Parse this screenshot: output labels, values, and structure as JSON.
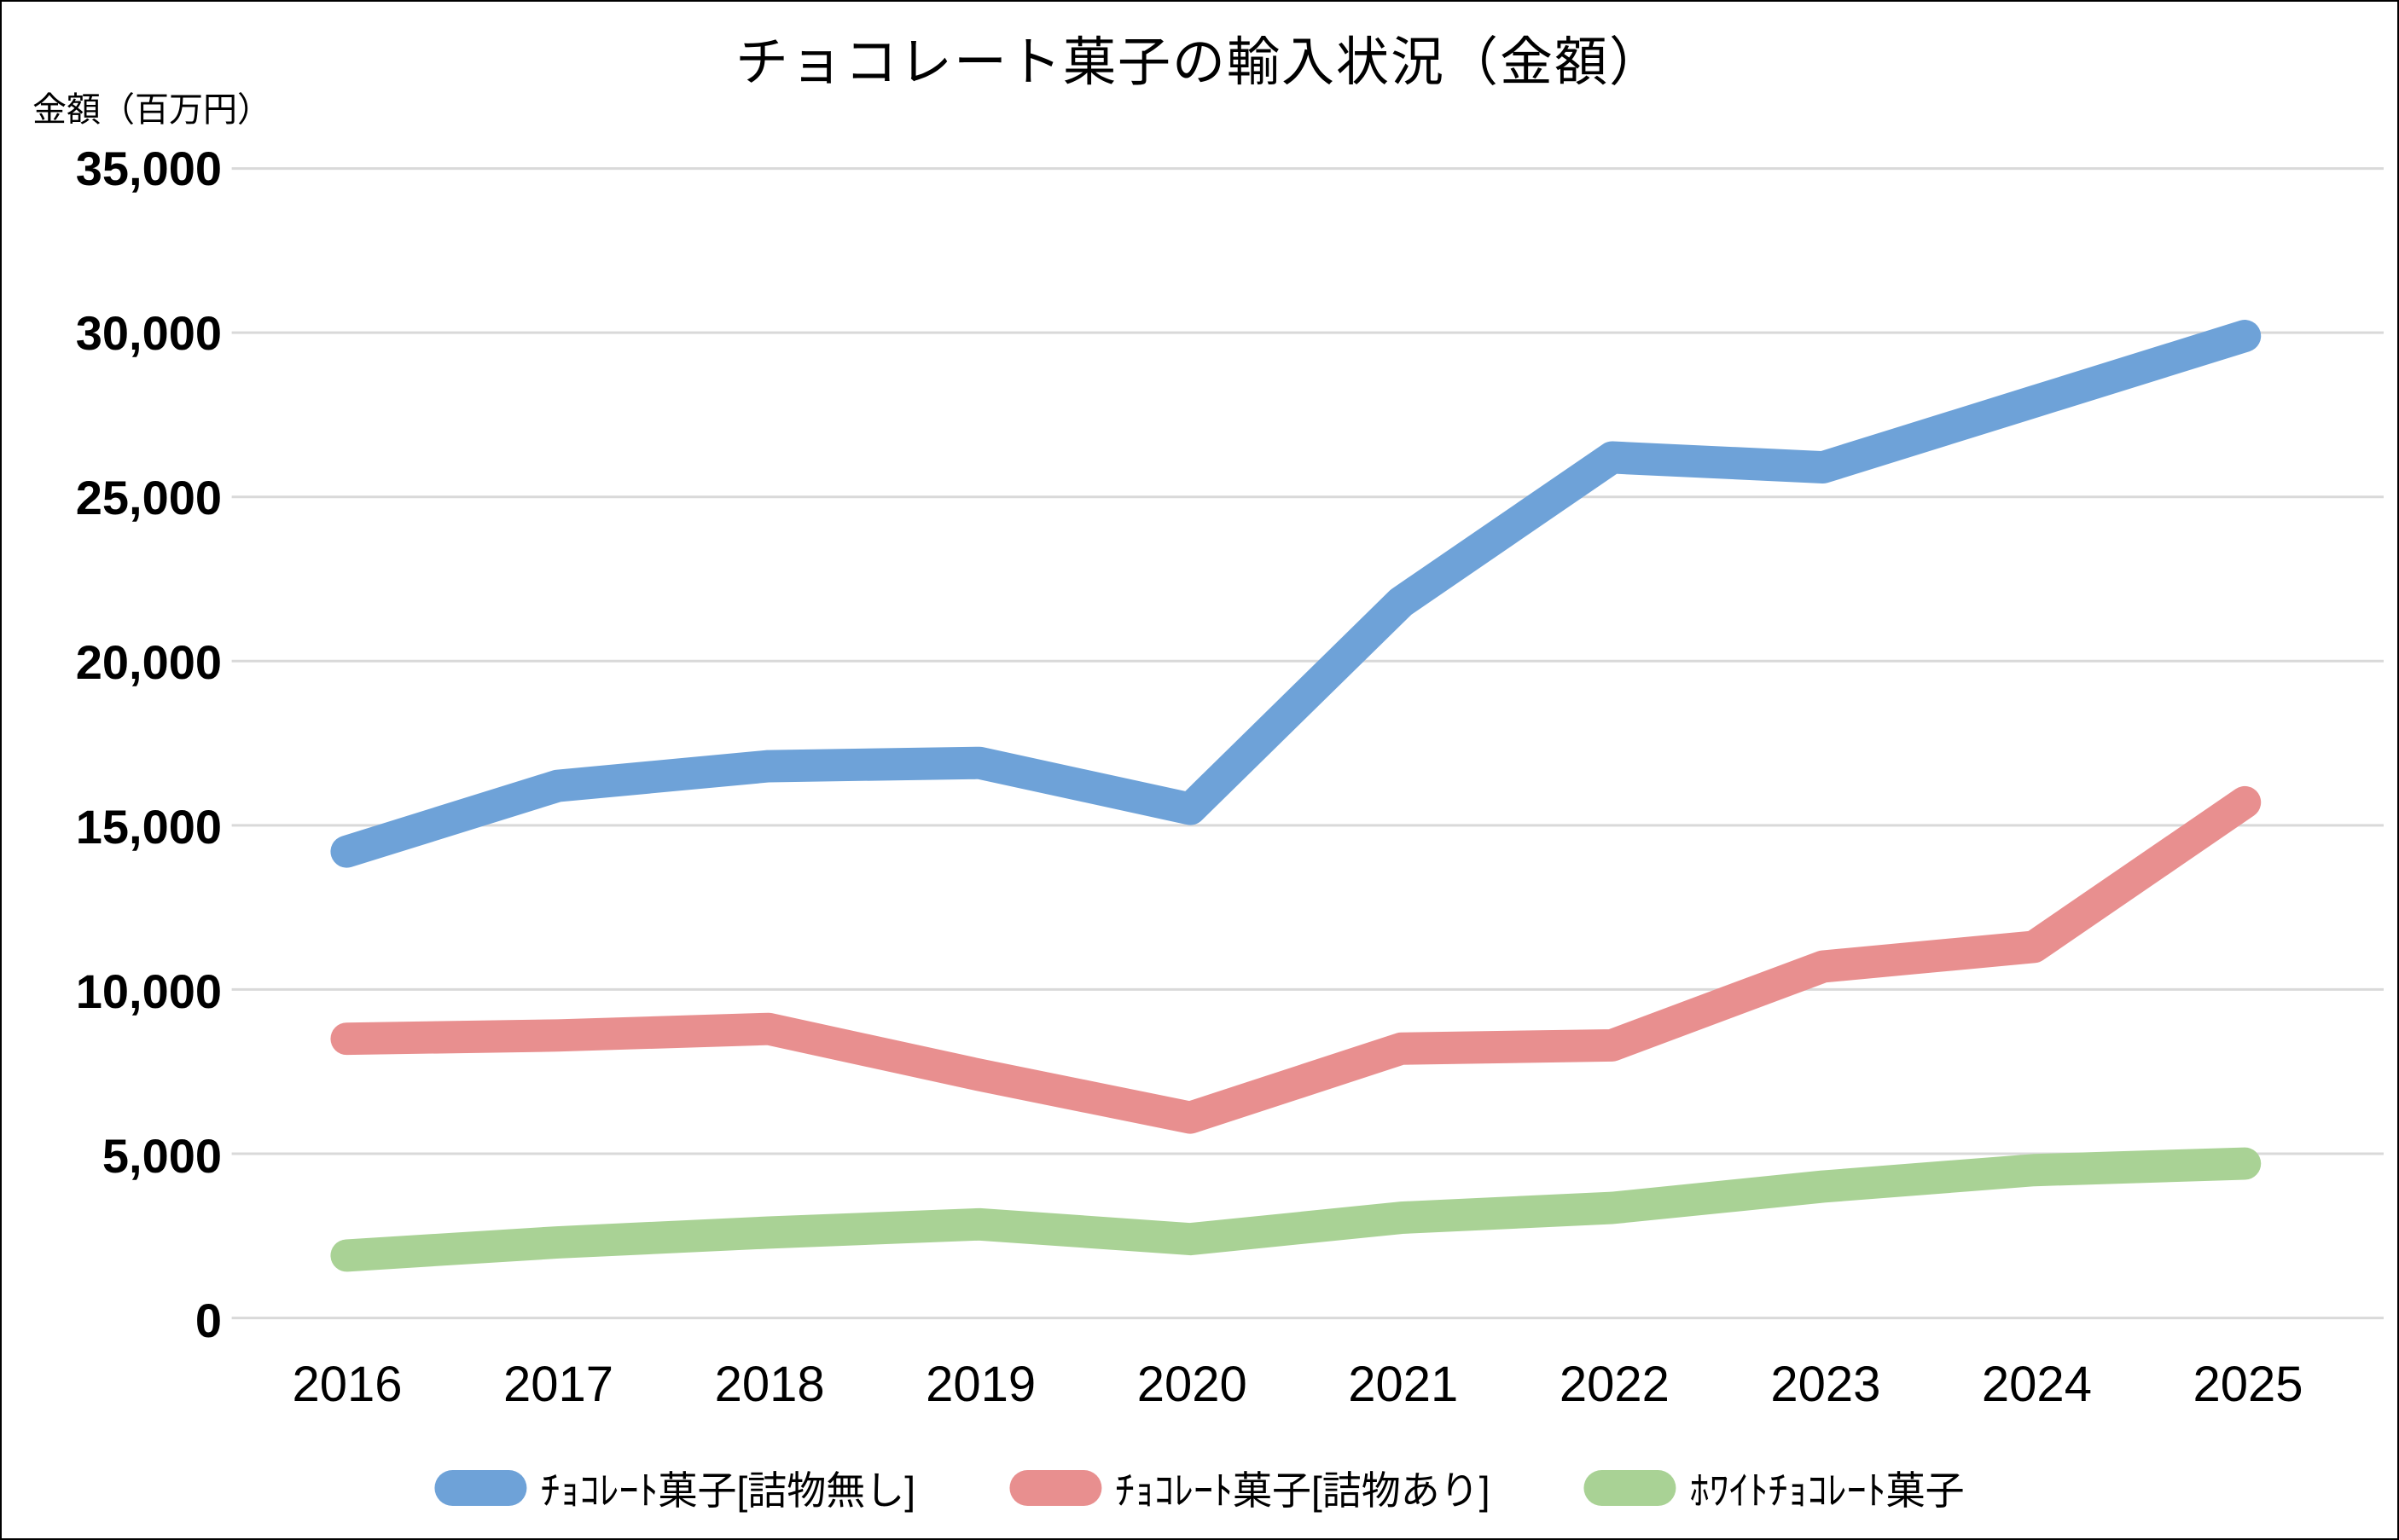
{
  "title": "チョコレート菓子の輸入状況（金額）",
  "y_axis_title": "金額（百万円）",
  "chart_data": {
    "type": "line",
    "x": [
      "2016",
      "2017",
      "2018",
      "2019",
      "2020",
      "2021",
      "2022",
      "2023",
      "2024",
      "2025"
    ],
    "series": [
      {
        "name": "ﾁｮｺﾚｰﾄ菓子[詰物無し]",
        "color": "#6EA2D8",
        "values": [
          14200,
          16200,
          16800,
          16900,
          15500,
          21800,
          26200,
          25900,
          27900,
          29900
        ]
      },
      {
        "name": "ﾁｮｺﾚｰﾄ菓子[詰物あり]",
        "color": "#E88F8F",
        "values": [
          8500,
          8600,
          8800,
          7400,
          6100,
          8200,
          8300,
          10700,
          11300,
          15700
        ]
      },
      {
        "name": "ﾎﾜｲﾄﾁｮｺﾚｰﾄ菓子",
        "color": "#A9D295",
        "values": [
          1900,
          2300,
          2600,
          2850,
          2400,
          3050,
          3350,
          4000,
          4500,
          4700
        ]
      }
    ],
    "ylim": [
      0,
      35000
    ],
    "y_tick_interval": 5000,
    "y_tick_labels": [
      "0",
      "5,000",
      "10,000",
      "15,000",
      "20,000",
      "25,000",
      "30,000",
      "35,000"
    ],
    "grid": true,
    "grid_color": "#D9D9D9",
    "text_color": "#000000",
    "legend_position": "bottom"
  }
}
